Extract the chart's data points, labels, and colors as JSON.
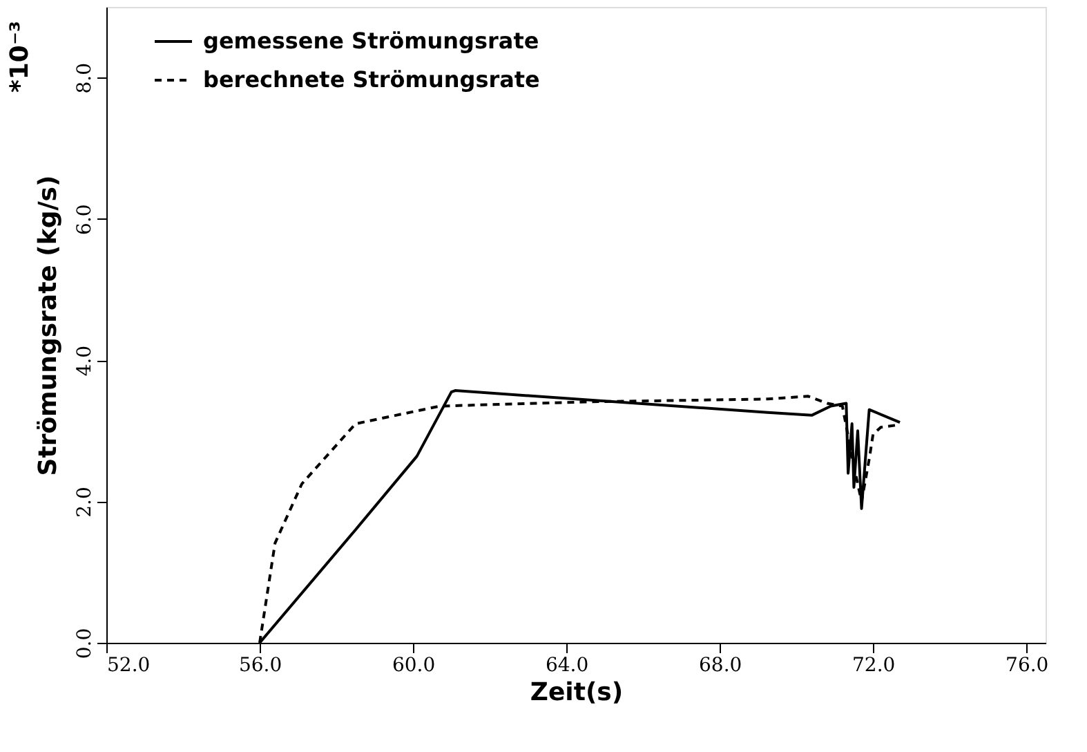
{
  "chart_data": {
    "type": "line",
    "xlabel": "Zeit(s)",
    "ylabel": "Strömungsrate (kg/s)",
    "annotations": [
      "*10⁻³"
    ],
    "xlim": [
      52,
      76.5
    ],
    "ylim": [
      0,
      9
    ],
    "xticks": [
      {
        "value": 52,
        "label": "52.0"
      },
      {
        "value": 56,
        "label": "56.0"
      },
      {
        "value": 60,
        "label": "60.0"
      },
      {
        "value": 64,
        "label": "64.0"
      },
      {
        "value": 68,
        "label": "68.0"
      },
      {
        "value": 72,
        "label": "72.0"
      },
      {
        "value": 76,
        "label": "76.0"
      }
    ],
    "yticks": [
      {
        "value": 0,
        "label": "0.0"
      },
      {
        "value": 2,
        "label": "2.0"
      },
      {
        "value": 4,
        "label": "4.0"
      },
      {
        "value": 6,
        "label": "6.0"
      },
      {
        "value": 8,
        "label": "8.0"
      }
    ],
    "grid": false,
    "legend": "top left",
    "marker": "none",
    "series": [
      {
        "name": "gemessene Strömungsrate",
        "color": "#000000",
        "line_style": "solid",
        "x": [
          56,
          58.5,
          60.1,
          61.0,
          61.1,
          69.25,
          70.4,
          70.9,
          71.3,
          71.35,
          71.45,
          71.5,
          71.6,
          71.7,
          71.8,
          71.9,
          72.7
        ],
        "values": [
          0,
          1.6,
          2.64,
          3.55,
          3.57,
          3.26,
          3.22,
          3.35,
          3.39,
          2.4,
          3.1,
          2.2,
          3.0,
          1.9,
          2.6,
          3.3,
          3.12
        ]
      },
      {
        "name": "berechnete Strömungsrate",
        "color": "#000000",
        "line_style": "dashed",
        "x": [
          56,
          56.4,
          57.1,
          58.5,
          60.7,
          64.5,
          69.25,
          70.3,
          70.8,
          71.2,
          71.5,
          71.7,
          71.9,
          72.0,
          72.2,
          72.6
        ],
        "values": [
          0,
          1.41,
          2.25,
          3.1,
          3.35,
          3.41,
          3.45,
          3.49,
          3.39,
          3.35,
          2.5,
          2.0,
          2.6,
          2.95,
          3.05,
          3.08
        ]
      }
    ]
  }
}
